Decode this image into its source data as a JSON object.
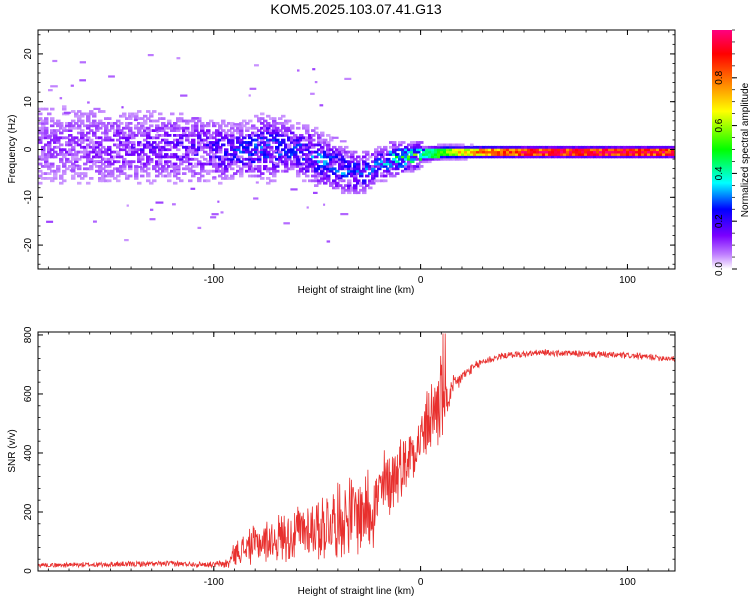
{
  "figure_title": "KOM5.2025.103.07.41.G13",
  "chart_data": [
    {
      "type": "heatmap",
      "title": "KOM5.2025.103.07.41.G13",
      "xlabel": "Height of straight line (km)",
      "ylabel": "Frequency (Hz)",
      "xlim": [
        -185,
        123
      ],
      "ylim": [
        -25,
        25
      ],
      "x_ticks": [
        -100,
        0,
        100
      ],
      "x_tick_labels": [
        "-100",
        "0",
        "100"
      ],
      "y_ticks": [
        -20,
        -10,
        0,
        10,
        20
      ],
      "y_tick_labels": [
        "-20",
        "-10",
        "0",
        "10",
        "20"
      ],
      "grid": false,
      "colorbar": {
        "label": "Normalized spectral amplitude",
        "range": [
          0,
          1
        ],
        "ticks": [
          0.0,
          0.2,
          0.4,
          0.6,
          0.8
        ],
        "tick_labels": [
          "0.0",
          "0.2",
          "0.4",
          "0.6",
          "0.8"
        ],
        "colormap_stops": [
          "#ffffff",
          "#c080ff",
          "#7a00ff",
          "#0000ff",
          "#00ffff",
          "#00ff00",
          "#ffff00",
          "#ff8000",
          "#ff0000",
          "#ff0080"
        ]
      },
      "ridge": {
        "x": [
          -180,
          -150,
          -120,
          -100,
          -90,
          -75,
          -60,
          -50,
          -40,
          -30,
          -22,
          -15,
          -5,
          0,
          10,
          25,
          50,
          80,
          100,
          123
        ],
        "freq": [
          1.0,
          0.5,
          0.5,
          0.0,
          -0.5,
          0.5,
          0.0,
          -2.0,
          -4.0,
          -5.0,
          -3.5,
          -2.0,
          -1.5,
          -1.0,
          -0.5,
          -0.5,
          -0.5,
          -0.5,
          -0.5,
          -0.5
        ],
        "amplitude": [
          0.08,
          0.1,
          0.12,
          0.15,
          0.18,
          0.2,
          0.18,
          0.22,
          0.22,
          0.2,
          0.22,
          0.3,
          0.35,
          0.4,
          0.55,
          0.75,
          0.9,
          0.95,
          0.92,
          0.9
        ],
        "spread_hz": [
          9,
          8,
          7,
          6,
          5,
          6,
          5,
          5,
          4,
          4,
          3,
          3,
          2.5,
          2,
          1.8,
          1.5,
          1.3,
          1.3,
          1.3,
          1.3
        ]
      }
    },
    {
      "type": "line",
      "xlabel": "Height of straight line (km)",
      "ylabel": "SNR (v/v)",
      "xlim": [
        -185,
        123
      ],
      "ylim": [
        0,
        810
      ],
      "x_ticks": [
        -100,
        0,
        100
      ],
      "x_tick_labels": [
        "-100",
        "0",
        "100"
      ],
      "y_ticks": [
        0,
        200,
        400,
        600,
        800
      ],
      "y_tick_labels": [
        "0",
        "200",
        "400",
        "600",
        "800"
      ],
      "grid": false,
      "line_color": "#e8302e",
      "series": [
        {
          "x": [
            -185,
            -150,
            -120,
            -100,
            -93,
            -90,
            -80,
            -70,
            -60,
            -50,
            -40,
            -30,
            -22,
            -18,
            -10,
            -5,
            0,
            5,
            8,
            10,
            12,
            15,
            20,
            30,
            40,
            60,
            80,
            100,
            123
          ],
          "mean": [
            20,
            22,
            25,
            22,
            25,
            60,
            90,
            110,
            130,
            150,
            170,
            200,
            230,
            280,
            350,
            400,
            450,
            520,
            560,
            600,
            560,
            610,
            660,
            710,
            730,
            740,
            735,
            730,
            720
          ],
          "jitter": [
            8,
            10,
            10,
            10,
            20,
            40,
            70,
            80,
            100,
            120,
            130,
            150,
            160,
            140,
            110,
            110,
            120,
            130,
            160,
            190,
            80,
            50,
            25,
            15,
            12,
            12,
            12,
            12,
            12
          ]
        }
      ]
    }
  ]
}
